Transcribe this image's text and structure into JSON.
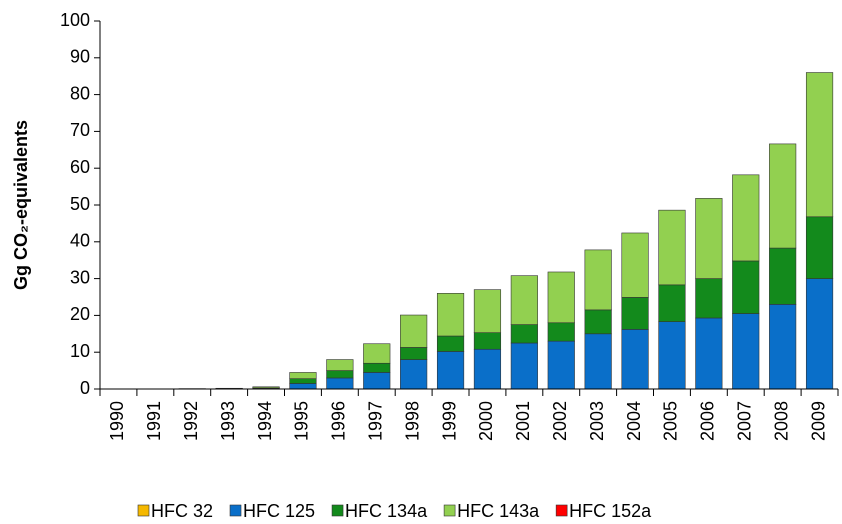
{
  "chart_data": {
    "type": "stacked_bar",
    "y_label": "Gg CO₂-equivalents",
    "categories": [
      "1990",
      "1991",
      "1992",
      "1993",
      "1994",
      "1995",
      "1996",
      "1997",
      "1998",
      "1999",
      "2000",
      "2001",
      "2002",
      "2003",
      "2004",
      "2005",
      "2006",
      "2007",
      "2008",
      "2009"
    ],
    "series": [
      {
        "name": "HFC 32",
        "color": "#f5b800",
        "values": [
          0,
          0,
          0,
          0,
          0,
          0,
          0,
          0,
          0,
          0,
          0,
          0,
          0,
          0,
          0,
          0,
          0,
          0,
          0,
          0
        ]
      },
      {
        "name": "HFC 125",
        "color": "#0a6fc9",
        "values": [
          0,
          0,
          0,
          0.05,
          0.2,
          1.5,
          3,
          4.5,
          8,
          10.2,
          10.8,
          12.5,
          13,
          15,
          16.2,
          18.3,
          19.3,
          20.5,
          23,
          30
        ]
      },
      {
        "name": "HFC 134a",
        "color": "#138a1c",
        "values": [
          0,
          0,
          0,
          0.05,
          0.1,
          1.3,
          2,
          2.5,
          3.3,
          4.2,
          4.5,
          5,
          5,
          6.5,
          8.7,
          10,
          10.7,
          14.3,
          15.3,
          16.8
        ]
      },
      {
        "name": "HFC 143a",
        "color": "#92d050",
        "values": [
          0,
          0,
          0.1,
          0.1,
          0.3,
          1.7,
          3,
          5.3,
          8.8,
          11.6,
          11.7,
          13.3,
          13.8,
          16.3,
          17.5,
          20.3,
          21.8,
          23.4,
          28.3,
          39.2
        ]
      },
      {
        "name": "HFC 152a",
        "color": "#ff0000",
        "values": [
          0,
          0,
          0,
          0,
          0,
          0,
          0,
          0,
          0,
          0,
          0,
          0,
          0,
          0,
          0,
          0,
          0,
          0,
          0,
          0
        ]
      }
    ],
    "ylim": [
      0,
      100
    ],
    "yticks": [
      0,
      10,
      20,
      30,
      40,
      50,
      60,
      70,
      80,
      90,
      100
    ]
  }
}
